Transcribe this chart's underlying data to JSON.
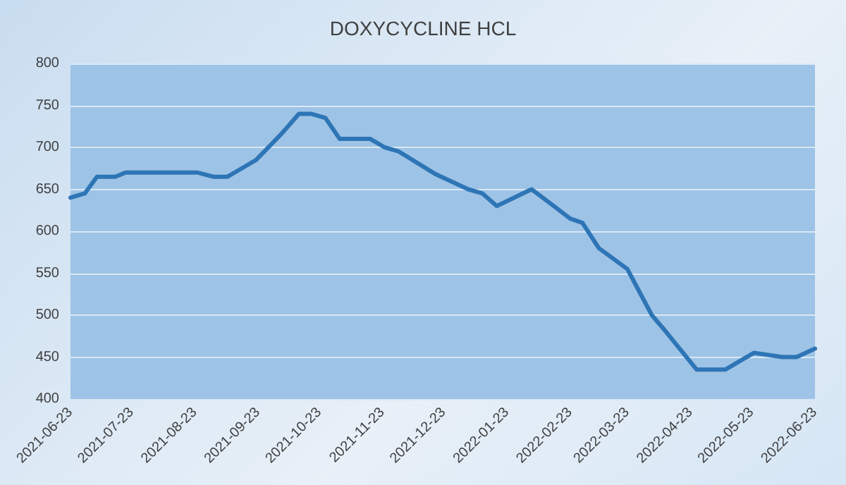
{
  "chart_data": {
    "type": "line",
    "title": "DOXYCYCLINE HCL",
    "x": [
      "2021-06-23",
      "2021-06-30",
      "2021-07-06",
      "2021-07-15",
      "2021-07-20",
      "2021-08-24",
      "2021-09-01",
      "2021-09-08",
      "2021-09-15",
      "2021-09-22",
      "2021-10-04",
      "2021-10-13",
      "2021-10-19",
      "2021-10-26",
      "2021-11-02",
      "2021-11-17",
      "2021-11-24",
      "2021-12-01",
      "2021-12-19",
      "2022-01-04",
      "2022-01-11",
      "2022-01-18",
      "2022-02-04",
      "2022-02-15",
      "2022-02-23",
      "2022-03-01",
      "2022-03-09",
      "2022-03-23",
      "2022-04-04",
      "2022-04-11",
      "2022-04-26",
      "2022-05-10",
      "2022-05-24",
      "2022-06-07",
      "2022-06-14",
      "2022-06-23"
    ],
    "series": [
      {
        "color": "#2e75b6",
        "values": [
          640,
          645,
          665,
          665,
          670,
          670,
          665,
          665,
          675,
          685,
          715,
          740,
          740,
          735,
          710,
          710,
          700,
          695,
          668,
          650,
          645,
          630,
          650,
          630,
          615,
          610,
          580,
          555,
          500,
          480,
          435,
          435,
          455,
          450,
          450,
          460
        ]
      }
    ],
    "xlim": [
      "2021-06-23",
      "2022-06-23"
    ],
    "xticks": [
      "2021-06-23",
      "2021-07-23",
      "2021-08-23",
      "2021-09-23",
      "2021-10-23",
      "2021-11-23",
      "2021-12-23",
      "2022-01-23",
      "2022-02-23",
      "2022-03-23",
      "2022-04-23",
      "2022-05-23",
      "2022-06-23"
    ],
    "ylim": [
      400,
      800
    ],
    "yticks": [
      400,
      450,
      500,
      550,
      600,
      650,
      700,
      750,
      800
    ],
    "grid": "y",
    "marker": "none",
    "line_style": "solid"
  }
}
